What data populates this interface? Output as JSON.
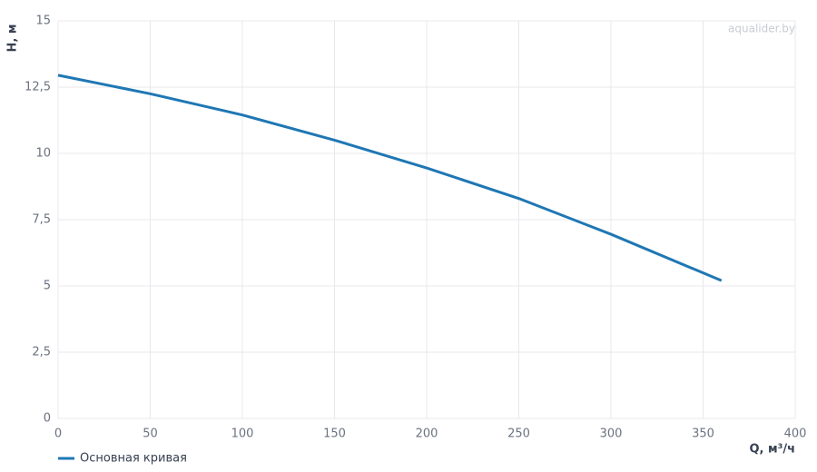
{
  "chart_data": {
    "type": "line",
    "x_label": "Q, м³/ч",
    "y_label": "H, м",
    "watermark": "aqualider.by",
    "x": [
      0,
      50,
      100,
      150,
      200,
      250,
      300,
      360
    ],
    "series": [
      {
        "name": "Основная кривая",
        "color": "#1f77b4",
        "values": [
          12.95,
          12.25,
          11.45,
          10.5,
          9.45,
          8.3,
          6.95,
          5.2
        ]
      }
    ],
    "xlim": [
      0,
      400
    ],
    "xticks": [
      0,
      50,
      100,
      150,
      200,
      250,
      300,
      350,
      400
    ],
    "ylim": [
      0,
      15
    ],
    "yticks": [
      0,
      {
        "value": 2.5,
        "label": "2,5"
      },
      5,
      {
        "value": 7.5,
        "label": "7,5"
      },
      10,
      {
        "value": 12.5,
        "label": "12,5"
      },
      15
    ],
    "grid": true,
    "legend": "bottom-left"
  }
}
